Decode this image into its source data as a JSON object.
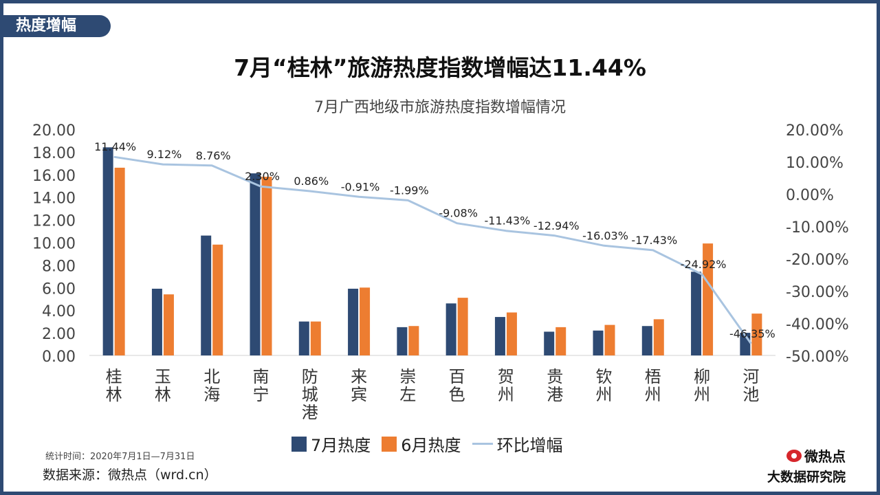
{
  "header": {
    "tag": "热度增幅",
    "title": "7月“桂林”旅游热度指数增幅达11.44%"
  },
  "chart_data": {
    "type": "bar",
    "title": "7月广西地级市旅游热度指数增幅情况",
    "categories": [
      "桂林",
      "玉林",
      "北海",
      "南宁",
      "防城港",
      "来宾",
      "崇左",
      "百色",
      "贺州",
      "贵港",
      "钦州",
      "梧州",
      "柳州",
      "河池"
    ],
    "series": [
      {
        "name": "7月热度",
        "type": "bar",
        "axis": "left",
        "color": "#2e4a73",
        "values": [
          18.4,
          5.9,
          10.6,
          16.1,
          3.0,
          5.9,
          2.5,
          4.6,
          3.4,
          2.1,
          2.2,
          2.6,
          7.4,
          2.0
        ]
      },
      {
        "name": "6月热度",
        "type": "bar",
        "axis": "left",
        "color": "#ed7d31",
        "values": [
          16.6,
          5.4,
          9.8,
          15.8,
          3.0,
          6.0,
          2.6,
          5.1,
          3.8,
          2.5,
          2.7,
          3.2,
          9.9,
          3.7
        ]
      },
      {
        "name": "环比增幅",
        "type": "line",
        "axis": "right",
        "color": "#a9c4e0",
        "values": [
          11.44,
          9.12,
          8.76,
          2.3,
          0.86,
          -0.91,
          -1.99,
          -9.08,
          -11.43,
          -12.94,
          -16.03,
          -17.43,
          -24.92,
          -46.35
        ],
        "labels": [
          "11.44%",
          "9.12%",
          "8.76%",
          "2.30%",
          "0.86%",
          "-0.91%",
          "-1.99%",
          "-9.08%",
          "-11.43%",
          "-12.94%",
          "-16.03%",
          "-17.43%",
          "-24.92%",
          "-46.35%"
        ]
      }
    ],
    "ylim_left": [
      0,
      20
    ],
    "yticks_left": [
      "20.00",
      "18.00",
      "16.00",
      "14.00",
      "12.00",
      "10.00",
      "8.00",
      "6.00",
      "4.00",
      "2.00",
      "0.00"
    ],
    "ylim_right": [
      -50,
      20
    ],
    "yticks_right": [
      "20.00%",
      "10.00%",
      "0.00%",
      "-10.00%",
      "-20.00%",
      "-30.00%",
      "-40.00%",
      "-50.00%"
    ],
    "grid": false,
    "legend_position": "bottom"
  },
  "footer": {
    "stat_time": "统计时间：2020年7月1日—7月31日",
    "source": "数据来源：微热点（wrd.cn）",
    "brand_name": "微热点",
    "brand_institute": "大数据研究院"
  }
}
